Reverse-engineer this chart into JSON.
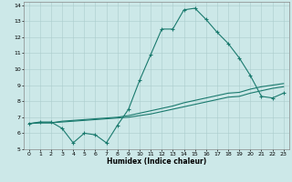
{
  "xlabel": "Humidex (Indice chaleur)",
  "xlim": [
    -0.5,
    23.5
  ],
  "ylim": [
    5,
    14.2
  ],
  "yticks": [
    5,
    6,
    7,
    8,
    9,
    10,
    11,
    12,
    13,
    14
  ],
  "xticks": [
    0,
    1,
    2,
    3,
    4,
    5,
    6,
    7,
    8,
    9,
    10,
    11,
    12,
    13,
    14,
    15,
    16,
    17,
    18,
    19,
    20,
    21,
    22,
    23
  ],
  "bg_color": "#cce8e8",
  "grid_color": "#aacccc",
  "line_color": "#1a7a6e",
  "line1_x": [
    0,
    1,
    2,
    3,
    4,
    5,
    6,
    7,
    8,
    9,
    10,
    11,
    12,
    13,
    14,
    15,
    16,
    17,
    18,
    19,
    20,
    21,
    22,
    23
  ],
  "line1_y": [
    6.6,
    6.7,
    6.7,
    6.3,
    5.4,
    6.0,
    5.9,
    5.4,
    6.5,
    7.5,
    9.3,
    10.9,
    12.5,
    12.5,
    13.7,
    13.8,
    13.1,
    12.3,
    11.6,
    10.7,
    9.6,
    8.3,
    8.2,
    8.5
  ],
  "line2_x": [
    0,
    1,
    2,
    3,
    4,
    5,
    6,
    7,
    8,
    9,
    10,
    11,
    12,
    13,
    14,
    15,
    16,
    17,
    18,
    19,
    20,
    21,
    22,
    23
  ],
  "line2_y": [
    6.6,
    6.65,
    6.65,
    6.7,
    6.75,
    6.8,
    6.85,
    6.9,
    6.95,
    7.0,
    7.1,
    7.2,
    7.35,
    7.5,
    7.65,
    7.8,
    7.95,
    8.1,
    8.25,
    8.3,
    8.5,
    8.65,
    8.8,
    8.9
  ],
  "line3_x": [
    0,
    1,
    2,
    3,
    4,
    5,
    6,
    7,
    8,
    9,
    10,
    11,
    12,
    13,
    14,
    15,
    16,
    17,
    18,
    19,
    20,
    21,
    22,
    23
  ],
  "line3_y": [
    6.6,
    6.65,
    6.65,
    6.75,
    6.8,
    6.85,
    6.9,
    6.95,
    7.0,
    7.1,
    7.25,
    7.4,
    7.55,
    7.7,
    7.9,
    8.05,
    8.2,
    8.35,
    8.5,
    8.55,
    8.75,
    8.9,
    9.0,
    9.1
  ]
}
